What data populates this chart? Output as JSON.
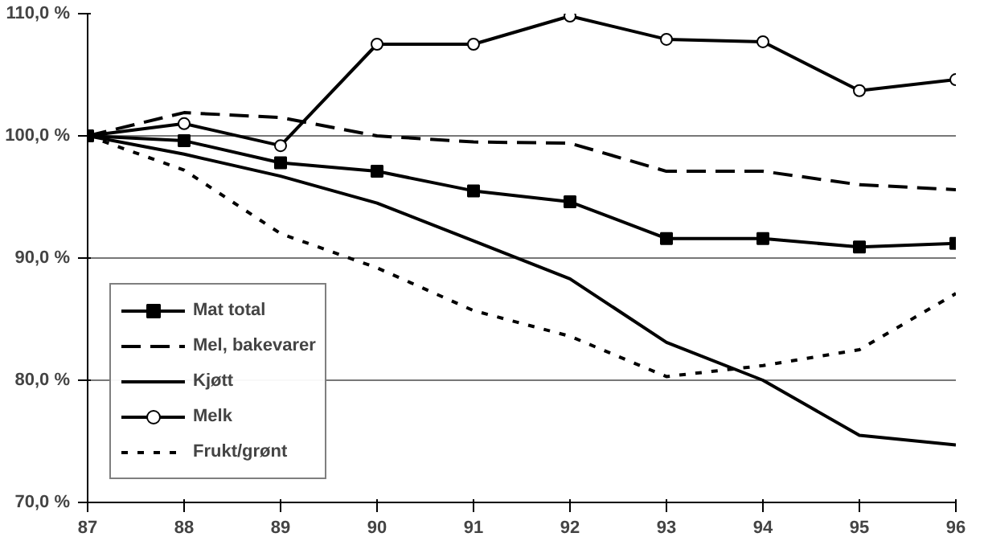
{
  "chart_data": {
    "type": "line",
    "x": [
      87,
      88,
      89,
      90,
      91,
      92,
      93,
      94,
      95,
      96
    ],
    "xlim": [
      87,
      96
    ],
    "xticks": [
      87,
      88,
      89,
      90,
      91,
      92,
      93,
      94,
      95,
      96
    ],
    "ylim": [
      70,
      110
    ],
    "yticks": [
      {
        "value": 70,
        "label": "70,0 %"
      },
      {
        "value": 80,
        "label": "80,0 %"
      },
      {
        "value": 90,
        "label": "90,0 %"
      },
      {
        "value": 100,
        "label": "100,0 %"
      },
      {
        "value": 110,
        "label": "110,0 %"
      }
    ],
    "grid": "y",
    "legend": "bottom left",
    "series": [
      {
        "name": "Mat total",
        "color": "#000000",
        "marker": "square",
        "line_style": "solid",
        "values": [
          100,
          99.6,
          97.8,
          97.1,
          95.5,
          94.6,
          91.6,
          91.6,
          90.9,
          91.2
        ]
      },
      {
        "name": "Mel, bakevarer",
        "color": "#000000",
        "marker": "none",
        "line_style": "dashed",
        "values": [
          100,
          101.9,
          101.5,
          100,
          99.5,
          99.4,
          97.1,
          97.1,
          96,
          95.6
        ]
      },
      {
        "name": "Kjøtt",
        "color": "#000000",
        "marker": "none",
        "line_style": "solid",
        "values": [
          100,
          98.5,
          96.7,
          94.5,
          91.4,
          88.3,
          83.1,
          80,
          75.5,
          74.7
        ]
      },
      {
        "name": "Melk",
        "color": "#000000",
        "marker": "circle",
        "line_style": "solid",
        "values": [
          100,
          101,
          99.2,
          107.5,
          107.5,
          109.8,
          107.9,
          107.7,
          103.7,
          104.6
        ]
      },
      {
        "name": "Frukt/grønt",
        "color": "#000000",
        "marker": "none",
        "line_style": "dotted",
        "values": [
          100,
          97.2,
          92,
          89.2,
          85.7,
          83.6,
          80.3,
          81.2,
          82.5,
          87.1
        ]
      }
    ]
  }
}
